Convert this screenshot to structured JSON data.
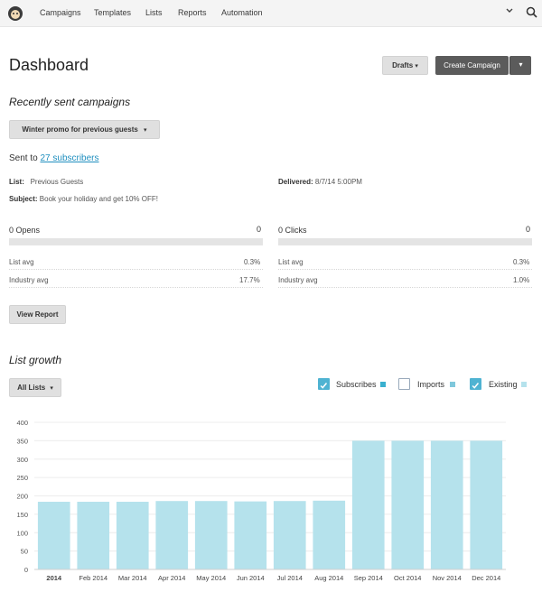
{
  "nav": {
    "items": [
      "Campaigns",
      "Templates",
      "Lists",
      "Reports",
      "Automation"
    ]
  },
  "page_title": "Dashboard",
  "buttons": {
    "drafts": "Drafts",
    "create_campaign": "Create Campaign",
    "view_report": "View Report",
    "all_lists": "All Lists"
  },
  "recent": {
    "heading": "Recently sent campaigns",
    "campaign_select": "Winter promo for previous guests",
    "sent_to_prefix": "Sent to",
    "sent_to_link": "27 subscribers",
    "list_label": "List:",
    "list_value": "Previous Guests",
    "delivered_label": "Delivered:",
    "delivered_value": "8/7/14 5:00PM",
    "subject_label": "Subject:",
    "subject_value": "Book your holiday and get 10% OFF!",
    "opens": {
      "label": "0 Opens",
      "count": "0",
      "fill": 0,
      "list_avg_label": "List avg",
      "list_avg": "0.3%",
      "industry_avg_label": "Industry avg",
      "industry_avg": "17.7%"
    },
    "clicks": {
      "label": "0 Clicks",
      "count": "0",
      "fill": 0,
      "list_avg_label": "List avg",
      "list_avg": "0.3%",
      "industry_avg_label": "Industry avg",
      "industry_avg": "1.0%"
    }
  },
  "growth": {
    "heading": "List growth",
    "legend": [
      {
        "label": "Subscribes",
        "checked": true,
        "color": "#3ab0cf"
      },
      {
        "label": "Imports",
        "checked": false,
        "color": "#7fc8dc"
      },
      {
        "label": "Existing",
        "checked": true,
        "color": "#b5e2ec"
      }
    ]
  },
  "colors": {
    "bar": "#b5e2ec",
    "accent": "#4fb3d2",
    "link": "#1f8fbf"
  },
  "chart_data": {
    "type": "bar",
    "categories": [
      "2014",
      "Feb 2014",
      "Mar 2014",
      "Apr 2014",
      "May 2014",
      "Jun 2014",
      "Jul 2014",
      "Aug 2014",
      "Sep 2014",
      "Oct 2014",
      "Nov 2014",
      "Dec 2014"
    ],
    "series": [
      {
        "name": "Existing",
        "values": [
          184,
          184,
          184,
          186,
          186,
          185,
          186,
          187,
          350,
          350,
          350,
          350
        ]
      }
    ],
    "ylim": [
      0,
      400
    ],
    "yticks": [
      0,
      50,
      100,
      150,
      200,
      250,
      300,
      350,
      400
    ],
    "grid": true
  }
}
